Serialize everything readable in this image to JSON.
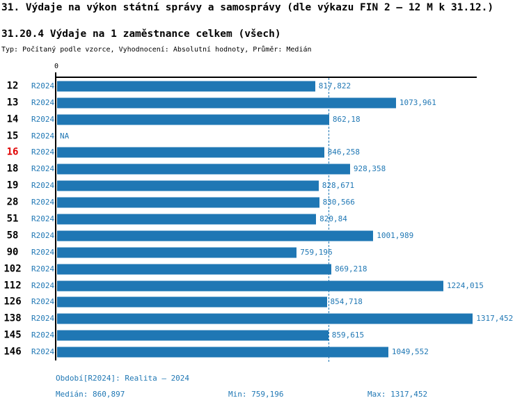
{
  "header": {
    "title": "31. Výdaje na výkon státní správy a samosprávy (dle výkazu FIN 2 – 12 M k 31.12.)",
    "subtitle": "31.20.4 Výdaje na 1 zaměstnance celkem (všech)",
    "meta": "Typ: Počítaný podle vzorce, Vyhodnocení: Absolutní hodnoty, Průměr: Medián"
  },
  "chart_data": {
    "type": "bar",
    "orientation": "horizontal",
    "axis_origin_label": "0",
    "series_label": "R2024",
    "na_label": "NA",
    "highlighted_category": "16",
    "categories": [
      "12",
      "13",
      "14",
      "15",
      "16",
      "18",
      "19",
      "28",
      "51",
      "58",
      "90",
      "102",
      "112",
      "126",
      "138",
      "145",
      "146"
    ],
    "values": [
      817.822,
      1073.961,
      862.18,
      null,
      846.258,
      928.358,
      828.671,
      830.566,
      820.84,
      1001.989,
      759.196,
      869.218,
      1224.015,
      854.718,
      1317.452,
      859.615,
      1049.552
    ],
    "value_labels": [
      "817,822",
      "1073,961",
      "862,18",
      "NA",
      "846,258",
      "928,358",
      "828,671",
      "830,566",
      "820,84",
      "1001,989",
      "759,196",
      "869,218",
      "1224,015",
      "854,718",
      "1317,452",
      "859,615",
      "1049,552"
    ],
    "median": 860.897,
    "min": 759.196,
    "max": 1317.452,
    "xlim": [
      0,
      1330
    ],
    "grid": false,
    "bar_color": "#1f77b4",
    "median_line_color": "#1f77b4",
    "highlight_color": "#e00000"
  },
  "footer": {
    "period": "Období[R2024]: Realita – 2024",
    "median_label": "Medián: 860,897",
    "min_label": "Min: 759,196",
    "max_label": "Max: 1317,452"
  }
}
